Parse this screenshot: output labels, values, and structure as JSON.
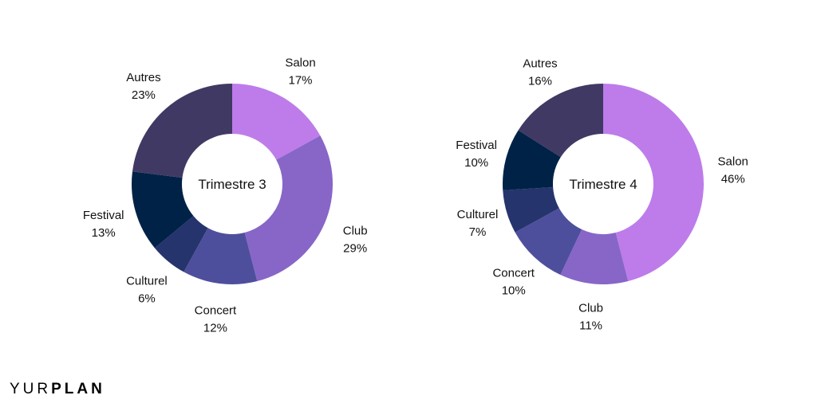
{
  "brand": {
    "part1": "YUR",
    "part2": "PLAN"
  },
  "colors": {
    "Salon": "#bd7cea",
    "Club": "#8766c8",
    "Concert": "#4e4f9c",
    "Culturel": "#25346c",
    "Festival": "#012247",
    "Autres": "#3f3963"
  },
  "chart_data": [
    {
      "type": "pie",
      "title": "Trimestre 3",
      "slices": [
        {
          "label": "Salon",
          "value": 17,
          "display": "17%"
        },
        {
          "label": "Club",
          "value": 29,
          "display": "29%"
        },
        {
          "label": "Concert",
          "value": 12,
          "display": "12%"
        },
        {
          "label": "Culturel",
          "value": 6,
          "display": "6%"
        },
        {
          "label": "Festival",
          "value": 13,
          "display": "13%"
        },
        {
          "label": "Autres",
          "value": 23,
          "display": "23%"
        }
      ]
    },
    {
      "type": "pie",
      "title": "Trimestre 4",
      "slices": [
        {
          "label": "Salon",
          "value": 46,
          "display": "46%"
        },
        {
          "label": "Club",
          "value": 11,
          "display": "11%"
        },
        {
          "label": "Concert",
          "value": 10,
          "display": "10%"
        },
        {
          "label": "Culturel",
          "value": 7,
          "display": "7%"
        },
        {
          "label": "Festival",
          "value": 10,
          "display": "10%"
        },
        {
          "label": "Autres",
          "value": 16,
          "display": "16%"
        }
      ]
    }
  ]
}
